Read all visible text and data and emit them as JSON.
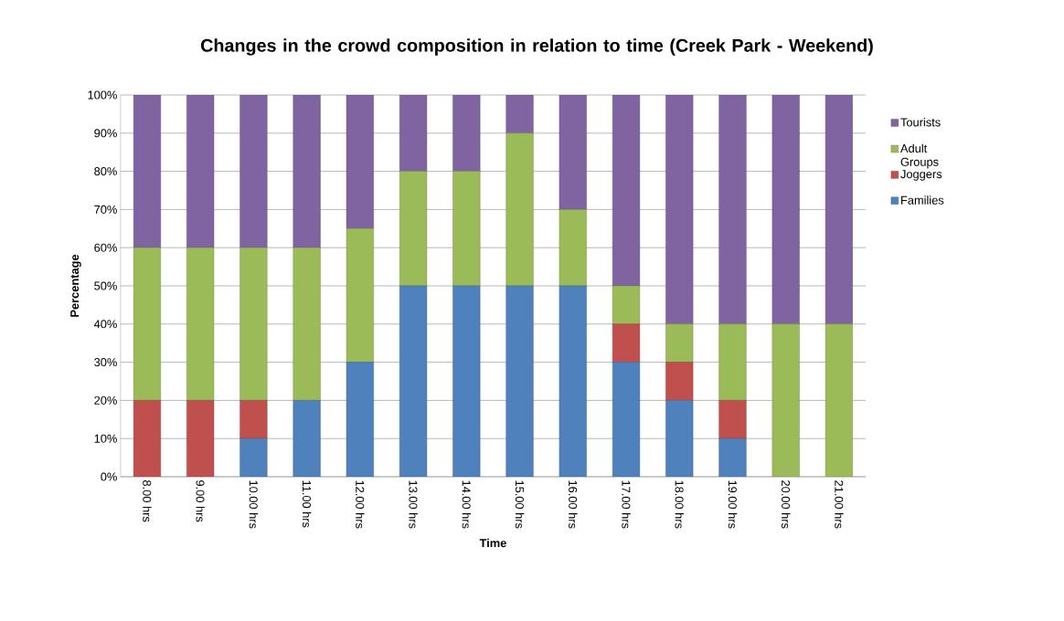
{
  "chart_data": {
    "type": "bar",
    "stacked": true,
    "title": "Changes in the crowd composition in relation to time (Creek Park - Weekend)",
    "xlabel": "Time",
    "ylabel": "Percentage",
    "categories": [
      "8.00 hrs",
      "9.00 hrs",
      "10.00 hrs",
      "11.00 hrs",
      "12.00 hrs",
      "13.00 hrs",
      "14.00 hrs",
      "15.00 hrs",
      "16.00 hrs",
      "17.00 hrs",
      "18.00 hrs",
      "19.00 hrs",
      "20.00 hrs",
      "21.00 hrs"
    ],
    "series": [
      {
        "name": "Families",
        "color": "#4f81bd",
        "values": [
          0,
          0,
          10,
          20,
          30,
          50,
          50,
          50,
          50,
          30,
          20,
          10,
          0,
          0
        ]
      },
      {
        "name": "Joggers",
        "color": "#c0504d",
        "values": [
          20,
          20,
          10,
          0,
          0,
          0,
          0,
          0,
          0,
          10,
          10,
          10,
          0,
          0
        ]
      },
      {
        "name": "Adult Groups",
        "color": "#9bbb59",
        "values": [
          40,
          40,
          40,
          40,
          35,
          30,
          30,
          40,
          20,
          10,
          10,
          20,
          40,
          40
        ]
      },
      {
        "name": "Tourists",
        "color": "#8064a2",
        "values": [
          40,
          40,
          40,
          40,
          35,
          20,
          20,
          10,
          30,
          50,
          60,
          60,
          60,
          60
        ]
      }
    ],
    "ylim": [
      0,
      100
    ],
    "yticks": [
      {
        "value": 0,
        "label": "0%"
      },
      {
        "value": 10,
        "label": "10%"
      },
      {
        "value": 20,
        "label": "20%"
      },
      {
        "value": 30,
        "label": "30%"
      },
      {
        "value": 40,
        "label": "40%"
      },
      {
        "value": 50,
        "label": "50%"
      },
      {
        "value": 60,
        "label": "60%"
      },
      {
        "value": 70,
        "label": "70%"
      },
      {
        "value": 80,
        "label": "80%"
      },
      {
        "value": 90,
        "label": "90%"
      },
      {
        "value": 100,
        "label": "100%"
      }
    ],
    "grid": "y",
    "legend": "right"
  }
}
